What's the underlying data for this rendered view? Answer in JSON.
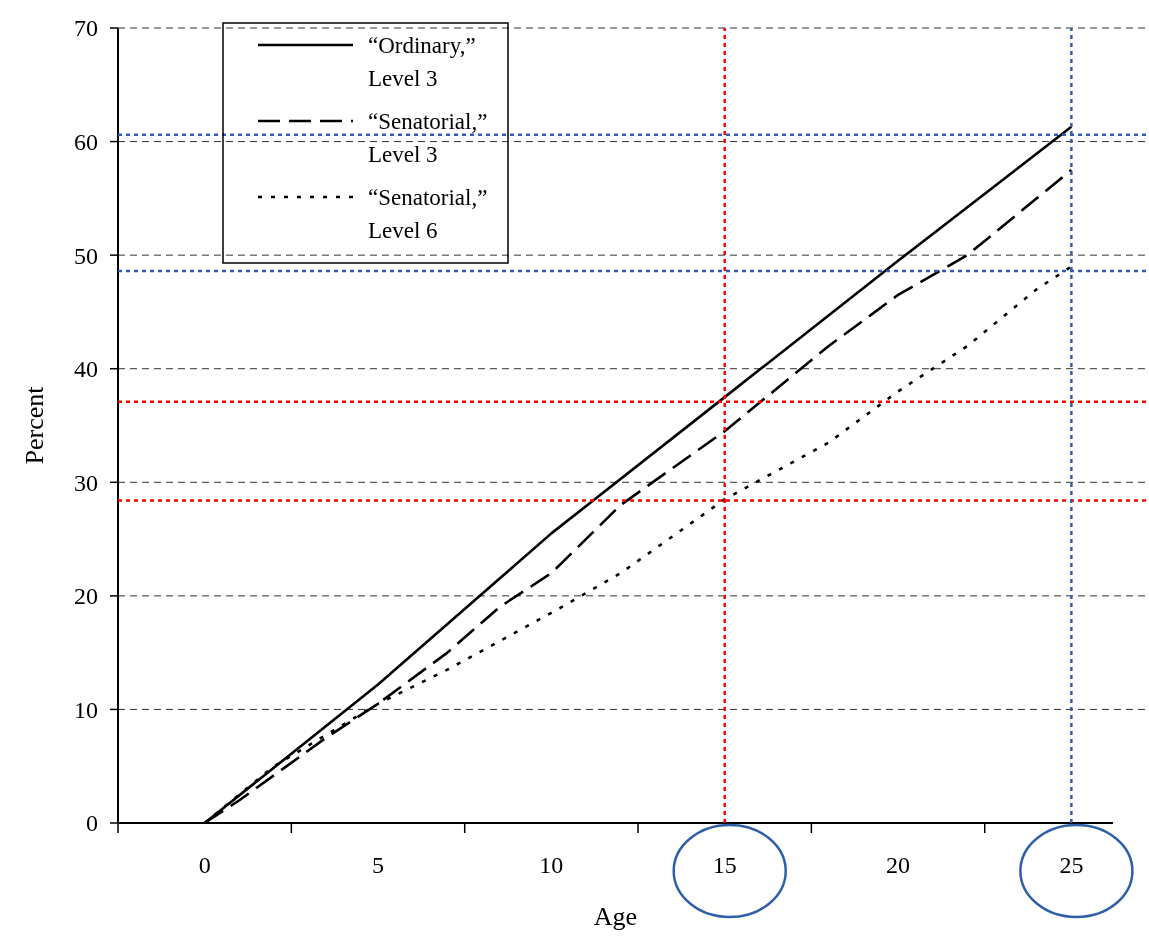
{
  "chart_data": {
    "type": "line",
    "xlabel": "Age",
    "ylabel": "Percent",
    "xlim": [
      -2.5,
      26.2
    ],
    "ylim": [
      0,
      70
    ],
    "xticks": [
      {
        "value": -2.5,
        "label": null
      },
      0,
      {
        "value": 2.5,
        "label": null
      },
      5,
      {
        "value": 7.5,
        "label": null
      },
      10,
      {
        "value": 12.5,
        "label": null
      },
      15,
      {
        "value": 17.5,
        "label": null
      },
      20,
      {
        "value": 22.5,
        "label": null
      },
      25
    ],
    "yticks": [
      0,
      10,
      20,
      30,
      40,
      50,
      60,
      70
    ],
    "grid": "y",
    "legend": "top left",
    "series": [
      {
        "name": "“Ordinary,” Level 3",
        "color": "#000000",
        "line_style": "solid",
        "x": [
          0,
          5,
          10,
          15,
          20,
          25
        ],
        "values": [
          0,
          12.2,
          25.5,
          37.5,
          49.5,
          61.3
        ]
      },
      {
        "name": "“Senatorial,” Level 3",
        "color": "#000000",
        "line_style": "dashed",
        "x": [
          0,
          1,
          3.5,
          5,
          7,
          8.5,
          10,
          12,
          15,
          16,
          18,
          20,
          22,
          24,
          25
        ],
        "values": [
          0,
          2,
          7.5,
          10.5,
          15,
          19,
          22,
          28,
          34.5,
          37,
          42,
          46.5,
          50,
          55,
          57.5
        ]
      },
      {
        "name": "“Senatorial,” Level 6",
        "color": "#000000",
        "line_style": "dotted",
        "x": [
          0,
          2,
          5,
          7,
          10,
          12,
          15,
          18,
          20,
          22,
          24,
          25
        ],
        "values": [
          0,
          5,
          10.5,
          13.5,
          18.5,
          22,
          28.5,
          33.5,
          38,
          42,
          47,
          49
        ]
      }
    ],
    "ref_lines": [
      {
        "axis": "y",
        "value": 37.1,
        "color": "#ff0000",
        "line_style": "dotted"
      },
      {
        "axis": "y",
        "value": 28.4,
        "color": "#ff0000",
        "line_style": "dotted"
      },
      {
        "axis": "x",
        "value": 15,
        "color": "#ff0000",
        "line_style": "dotted"
      },
      {
        "axis": "y",
        "value": 60.6,
        "color": "#2e5fa8",
        "line_style": "dotted"
      },
      {
        "axis": "y",
        "value": 48.6,
        "color": "#2e5fa8",
        "line_style": "dotted"
      },
      {
        "axis": "x",
        "value": 25,
        "color": "#2e5fa8",
        "line_style": "dotted"
      }
    ]
  }
}
